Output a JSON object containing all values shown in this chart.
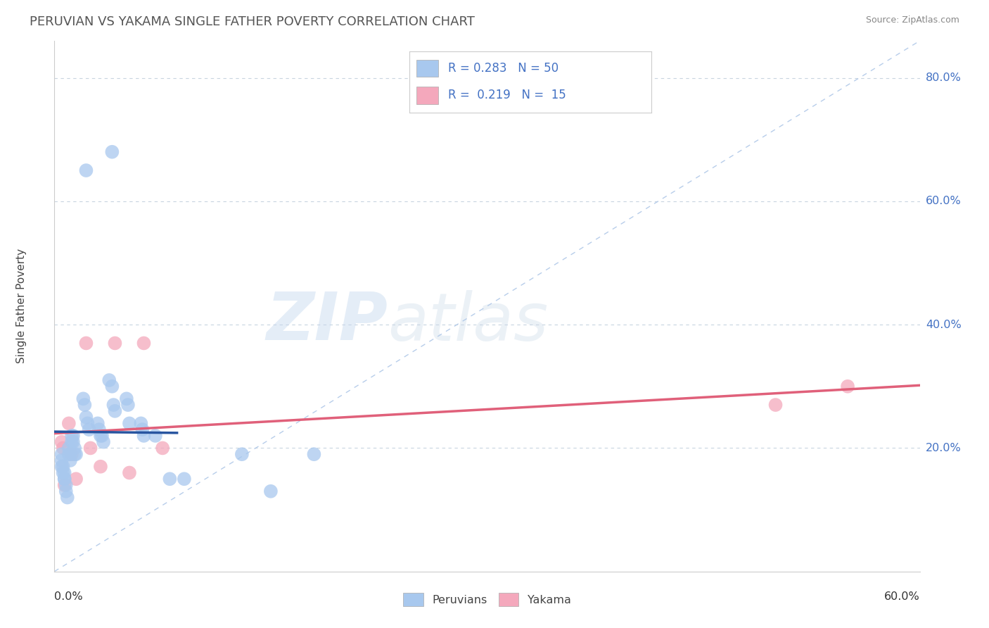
{
  "title": "PERUVIAN VS YAKAMA SINGLE FATHER POVERTY CORRELATION CHART",
  "source": "Source: ZipAtlas.com",
  "ylabel": "Single Father Poverty",
  "right_yticks": [
    "20.0%",
    "40.0%",
    "60.0%",
    "80.0%"
  ],
  "right_ytick_vals": [
    0.2,
    0.4,
    0.6,
    0.8
  ],
  "xlim": [
    0.0,
    0.6
  ],
  "ylim": [
    0.0,
    0.86
  ],
  "legend_bottom_blue": "Peruvians",
  "legend_bottom_pink": "Yakama",
  "blue_color": "#A8C8EE",
  "pink_color": "#F4A8BC",
  "blue_line_color": "#2855A0",
  "pink_line_color": "#E0607A",
  "dashed_line_color": "#B0C8E8",
  "watermark_zip": "ZIP",
  "watermark_atlas": "atlas",
  "peruvian_x": [
    0.005,
    0.005,
    0.005,
    0.006,
    0.006,
    0.007,
    0.007,
    0.007,
    0.008,
    0.008,
    0.009,
    0.01,
    0.01,
    0.011,
    0.011,
    0.012,
    0.012,
    0.013,
    0.013,
    0.014,
    0.014,
    0.015,
    0.02,
    0.021,
    0.022,
    0.023,
    0.024,
    0.03,
    0.031,
    0.032,
    0.033,
    0.034,
    0.038,
    0.04,
    0.041,
    0.042,
    0.05,
    0.051,
    0.052,
    0.06,
    0.061,
    0.062,
    0.07,
    0.08,
    0.09,
    0.022,
    0.04,
    0.13,
    0.15,
    0.18
  ],
  "peruvian_y": [
    0.19,
    0.18,
    0.17,
    0.17,
    0.16,
    0.16,
    0.15,
    0.15,
    0.14,
    0.13,
    0.12,
    0.2,
    0.19,
    0.19,
    0.18,
    0.22,
    0.21,
    0.22,
    0.21,
    0.2,
    0.19,
    0.19,
    0.28,
    0.27,
    0.25,
    0.24,
    0.23,
    0.24,
    0.23,
    0.22,
    0.22,
    0.21,
    0.31,
    0.3,
    0.27,
    0.26,
    0.28,
    0.27,
    0.24,
    0.24,
    0.23,
    0.22,
    0.22,
    0.15,
    0.15,
    0.65,
    0.68,
    0.19,
    0.13,
    0.19
  ],
  "yakama_x": [
    0.005,
    0.006,
    0.007,
    0.01,
    0.012,
    0.015,
    0.022,
    0.025,
    0.032,
    0.042,
    0.052,
    0.062,
    0.075,
    0.5,
    0.55
  ],
  "yakama_y": [
    0.21,
    0.2,
    0.14,
    0.24,
    0.19,
    0.15,
    0.37,
    0.2,
    0.17,
    0.37,
    0.16,
    0.37,
    0.2,
    0.27,
    0.3
  ]
}
